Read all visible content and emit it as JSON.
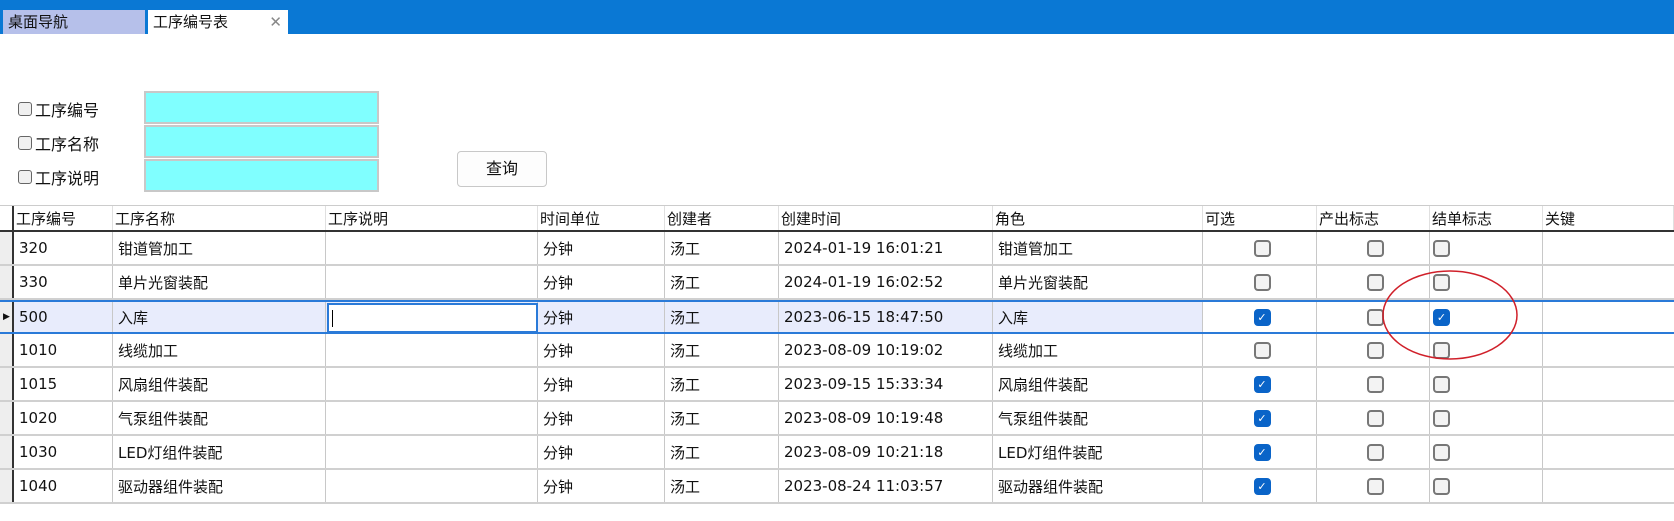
{
  "tabs": [
    {
      "label": "桌面导航",
      "icon": null
    },
    {
      "label": "工序编号表",
      "close_icon": "close-icon"
    }
  ],
  "filters": [
    {
      "label": "工序编号",
      "checked": false,
      "value": ""
    },
    {
      "label": "工序名称",
      "checked": false,
      "value": ""
    },
    {
      "label": "工序说明",
      "checked": false,
      "value": ""
    }
  ],
  "query_label": "查询",
  "columns": [
    "工序编号",
    "工序名称",
    "工序说明",
    "时间单位",
    "创建者",
    "创建时间",
    "角色",
    "可选",
    "产出标志",
    "结单标志",
    "关键"
  ],
  "rows": [
    {
      "code": "320",
      "name": "钳道管加工",
      "desc": "",
      "unit": "分钟",
      "creator": "汤工",
      "created": "2024-01-19 16:01:21",
      "role": "钳道管加工",
      "optional": false,
      "output": false,
      "close": false
    },
    {
      "code": "330",
      "name": "单片光窗装配",
      "desc": "",
      "unit": "分钟",
      "creator": "汤工",
      "created": "2024-01-19 16:02:52",
      "role": "单片光窗装配",
      "optional": false,
      "output": false,
      "close": false
    },
    {
      "code": "500",
      "name": "入库",
      "desc": "",
      "unit": "分钟",
      "creator": "汤工",
      "created": "2023-06-15 18:47:50",
      "role": "入库",
      "optional": true,
      "output": false,
      "close": true,
      "selected": true
    },
    {
      "code": "1010",
      "name": "线缆加工",
      "desc": "",
      "unit": "分钟",
      "creator": "汤工",
      "created": "2023-08-09 10:19:02",
      "role": "线缆加工",
      "optional": false,
      "output": false,
      "close": false
    },
    {
      "code": "1015",
      "name": "风扇组件装配",
      "desc": "",
      "unit": "分钟",
      "creator": "汤工",
      "created": "2023-09-15 15:33:34",
      "role": "风扇组件装配",
      "optional": true,
      "output": false,
      "close": false
    },
    {
      "code": "1020",
      "name": "气泵组件装配",
      "desc": "",
      "unit": "分钟",
      "creator": "汤工",
      "created": "2023-08-09 10:19:48",
      "role": "气泵组件装配",
      "optional": true,
      "output": false,
      "close": false
    },
    {
      "code": "1030",
      "name": "LED灯组件装配",
      "desc": "",
      "unit": "分钟",
      "creator": "汤工",
      "created": "2023-08-09 10:21:18",
      "role": "LED灯组件装配",
      "optional": true,
      "output": false,
      "close": false
    },
    {
      "code": "1040",
      "name": "驱动器组件装配",
      "desc": "",
      "unit": "分钟",
      "creator": "汤工",
      "created": "2023-08-24 11:03:57",
      "role": "驱动器组件装配",
      "optional": true,
      "output": false,
      "close": false
    }
  ],
  "colors": {
    "titlebar": "#0a78d4",
    "input_bg": "#80ffff",
    "checked": "#0a64c8",
    "annotation": "#d0202a"
  }
}
